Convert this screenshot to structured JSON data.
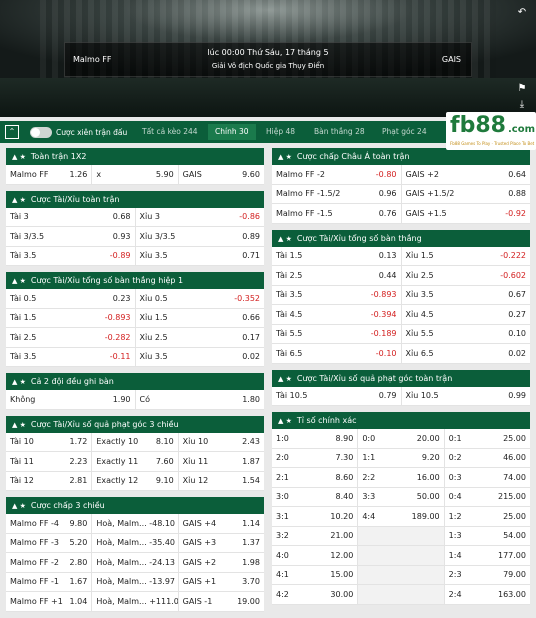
{
  "match": {
    "home": "Malmo FF",
    "away": "GAIS",
    "time": "lúc 00:00 Thứ Sáu, 17 tháng 5",
    "league": "Giải Vô địch Quốc gia Thụy Điển"
  },
  "icons": {
    "back": "back-arrow-icon",
    "pin": "pin-icon",
    "download": "download-icon",
    "collapse": "chevron-up-icon",
    "star": "star-icon"
  },
  "tabbar": {
    "parlay": "Cược xiên trận đấu",
    "tabs": [
      "Tất cả kèo 244",
      "Chính 30",
      "Hiệp 48",
      "Bàn thắng 28",
      "Phạt góc 24"
    ]
  },
  "logo": {
    "fb": "fb88",
    ".com": ".com",
    "tag": "Fb88 Games To Play · Trusted Place To Bet"
  },
  "colors": {
    "header": "#0b5e3a",
    "negative": "#d32020",
    "brand": "#1f7a3c"
  },
  "left": [
    {
      "title": "Toàn trận 1X2",
      "rows": [
        [
          [
            "Malmo FF",
            "1.26"
          ],
          [
            "x",
            "5.90"
          ],
          [
            "GAIS",
            "9.60"
          ]
        ]
      ]
    },
    {
      "title": "Cược Tài/Xỉu toàn trận",
      "rows": [
        [
          [
            "Tài 3",
            "0.68"
          ],
          [
            "Xỉu 3",
            "-0.86"
          ]
        ],
        [
          [
            "Tài 3/3.5",
            "0.93"
          ],
          [
            "Xỉu 3/3.5",
            "0.89"
          ]
        ],
        [
          [
            "Tài 3.5",
            "-0.89"
          ],
          [
            "Xỉu 3.5",
            "0.71"
          ]
        ]
      ]
    },
    {
      "title": "Cược Tài/Xỉu tổng số bàn thắng hiệp 1",
      "rows": [
        [
          [
            "Tài 0.5",
            "0.23"
          ],
          [
            "Xỉu 0.5",
            "-0.352"
          ]
        ],
        [
          [
            "Tài 1.5",
            "-0.893"
          ],
          [
            "Xỉu 1.5",
            "0.66"
          ]
        ],
        [
          [
            "Tài 2.5",
            "-0.282"
          ],
          [
            "Xỉu 2.5",
            "0.17"
          ]
        ],
        [
          [
            "Tài 3.5",
            "-0.11"
          ],
          [
            "Xỉu 3.5",
            "0.02"
          ]
        ]
      ]
    },
    {
      "title": "Cả 2 đội đều ghi bàn",
      "rows": [
        [
          [
            "Không",
            "1.90"
          ],
          [
            "Có",
            "1.80"
          ]
        ]
      ]
    },
    {
      "title": "Cược Tài/Xỉu số quả phạt góc 3 chiều",
      "rows": [
        [
          [
            "Tài 10",
            "1.72"
          ],
          [
            "Exactly 10",
            "8.10"
          ],
          [
            "Xỉu 10",
            "2.43"
          ]
        ],
        [
          [
            "Tài 11",
            "2.23"
          ],
          [
            "Exactly 11",
            "7.60"
          ],
          [
            "Xỉu 11",
            "1.87"
          ]
        ],
        [
          [
            "Tài 12",
            "2.81"
          ],
          [
            "Exactly 12",
            "9.10"
          ],
          [
            "Xỉu 12",
            "1.54"
          ]
        ]
      ]
    },
    {
      "title": "Cược chấp 3 chiều",
      "rows": [
        [
          [
            "Malmo FF -4",
            "9.80"
          ],
          [
            "Hoà, Malm... -4",
            "8.10"
          ],
          [
            "GAIS +4",
            "1.14"
          ]
        ],
        [
          [
            "Malmo FF -3",
            "5.20"
          ],
          [
            "Hoà, Malm... -3",
            "5.40"
          ],
          [
            "GAIS +3",
            "1.37"
          ]
        ],
        [
          [
            "Malmo FF -2",
            "2.80"
          ],
          [
            "Hoà, Malm... -2",
            "4.13"
          ],
          [
            "GAIS +2",
            "1.98"
          ]
        ],
        [
          [
            "Malmo FF -1",
            "1.67"
          ],
          [
            "Hoà, Malm... -1",
            "3.97"
          ],
          [
            "GAIS +1",
            "3.70"
          ]
        ],
        [
          [
            "Malmo FF +1",
            "1.04"
          ],
          [
            "Hoà, Malm... +1",
            "11.00"
          ],
          [
            "GAIS -1",
            "19.00"
          ]
        ]
      ]
    }
  ],
  "right": [
    {
      "title": "Cược chấp Châu Á toàn trận",
      "rows": [
        [
          [
            "Malmo FF -2",
            "-0.80"
          ],
          [
            "GAIS +2",
            "0.64"
          ]
        ],
        [
          [
            "Malmo FF -1.5/2",
            "0.96"
          ],
          [
            "GAIS +1.5/2",
            "0.88"
          ]
        ],
        [
          [
            "Malmo FF -1.5",
            "0.76"
          ],
          [
            "GAIS +1.5",
            "-0.92"
          ]
        ]
      ]
    },
    {
      "title": "Cược Tài/Xỉu tổng số bàn thắng",
      "rows": [
        [
          [
            "Tài 1.5",
            "0.13"
          ],
          [
            "Xỉu 1.5",
            "-0.222"
          ]
        ],
        [
          [
            "Tài 2.5",
            "0.44"
          ],
          [
            "Xỉu 2.5",
            "-0.602"
          ]
        ],
        [
          [
            "Tài 3.5",
            "-0.893"
          ],
          [
            "Xỉu 3.5",
            "0.67"
          ]
        ],
        [
          [
            "Tài 4.5",
            "-0.394"
          ],
          [
            "Xỉu 4.5",
            "0.27"
          ]
        ],
        [
          [
            "Tài 5.5",
            "-0.189"
          ],
          [
            "Xỉu 5.5",
            "0.10"
          ]
        ],
        [
          [
            "Tài 6.5",
            "-0.10"
          ],
          [
            "Xỉu 6.5",
            "0.02"
          ]
        ]
      ]
    },
    {
      "title": "Cược Tài/Xỉu số quả phạt góc toàn trận",
      "rows": [
        [
          [
            "Tài 10.5",
            "0.79"
          ],
          [
            "Xỉu 10.5",
            "0.99"
          ]
        ]
      ]
    },
    {
      "title": "Tỉ số chính xác",
      "rows": [
        [
          [
            "1:0",
            "8.90"
          ],
          [
            "0:0",
            "20.00"
          ],
          [
            "0:1",
            "25.00"
          ]
        ],
        [
          [
            "2:0",
            "7.30"
          ],
          [
            "1:1",
            "9.20"
          ],
          [
            "0:2",
            "46.00"
          ]
        ],
        [
          [
            "2:1",
            "8.60"
          ],
          [
            "2:2",
            "16.00"
          ],
          [
            "0:3",
            "74.00"
          ]
        ],
        [
          [
            "3:0",
            "8.40"
          ],
          [
            "3:3",
            "50.00"
          ],
          [
            "0:4",
            "215.00"
          ]
        ],
        [
          [
            "3:1",
            "10.20"
          ],
          [
            "4:4",
            "189.00"
          ],
          [
            "1:2",
            "25.00"
          ]
        ],
        [
          [
            "3:2",
            "21.00"
          ],
          [
            "",
            ""
          ],
          [
            "1:3",
            "54.00"
          ]
        ],
        [
          [
            "4:0",
            "12.00"
          ],
          [
            "",
            ""
          ],
          [
            "1:4",
            "177.00"
          ]
        ],
        [
          [
            "4:1",
            "15.00"
          ],
          [
            "",
            ""
          ],
          [
            "2:3",
            "79.00"
          ]
        ],
        [
          [
            "4:2",
            "30.00"
          ],
          [
            "",
            ""
          ],
          [
            "2:4",
            "163.00"
          ]
        ]
      ]
    }
  ]
}
